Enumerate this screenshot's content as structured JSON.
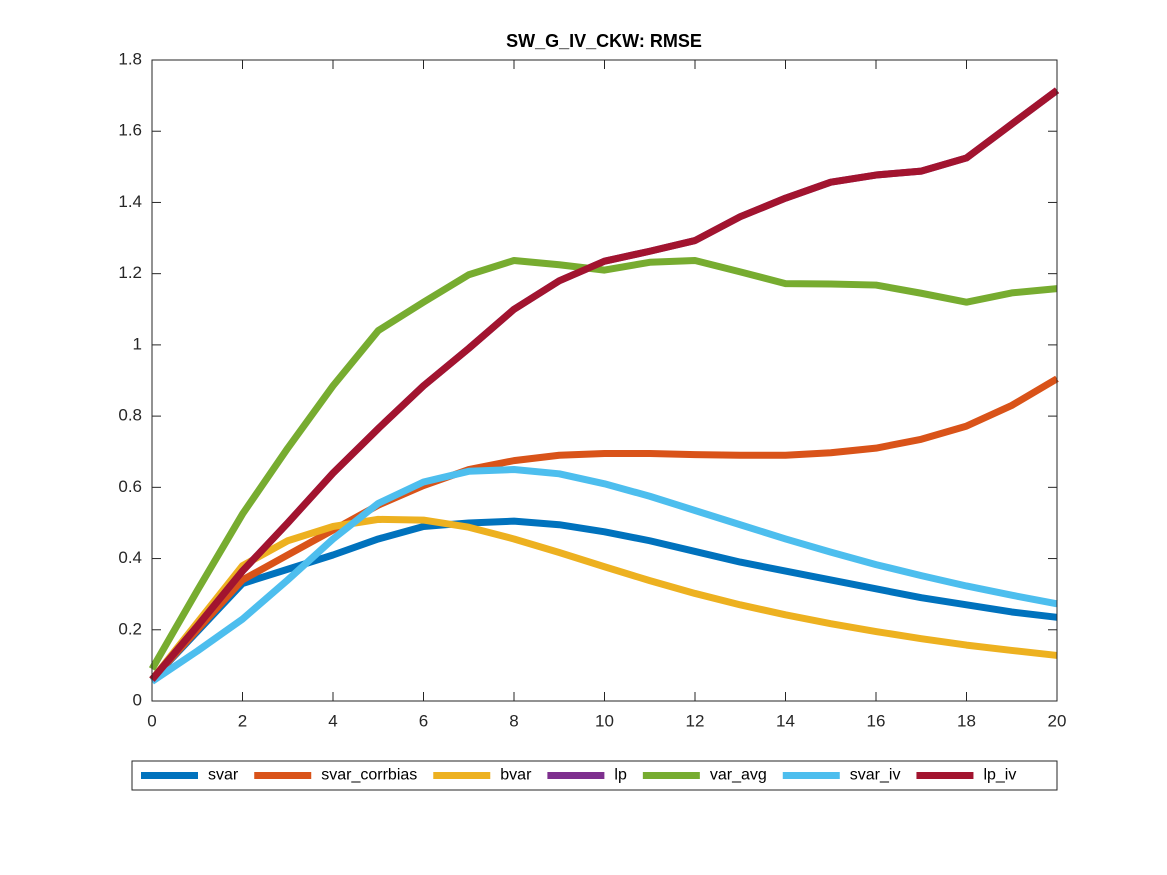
{
  "chart_data": {
    "type": "line",
    "title": "SW_G_IV_CKW: RMSE",
    "x": [
      0,
      1,
      2,
      3,
      4,
      5,
      6,
      7,
      8,
      9,
      10,
      11,
      12,
      13,
      14,
      15,
      16,
      17,
      18,
      19,
      20
    ],
    "series": [
      {
        "name": "svar",
        "color": "#0072bd",
        "values": [
          0.06,
          0.195,
          0.33,
          0.37,
          0.41,
          0.455,
          0.49,
          0.5,
          0.505,
          0.495,
          0.475,
          0.45,
          0.42,
          0.39,
          0.365,
          0.34,
          0.315,
          0.29,
          0.27,
          0.25,
          0.235
        ]
      },
      {
        "name": "svar_corrbias",
        "color": "#d95319",
        "values": [
          0.06,
          0.2,
          0.34,
          0.41,
          0.48,
          0.55,
          0.605,
          0.65,
          0.675,
          0.69,
          0.695,
          0.695,
          0.692,
          0.69,
          0.69,
          0.697,
          0.71,
          0.735,
          0.772,
          0.83,
          0.905
        ]
      },
      {
        "name": "bvar",
        "color": "#edb120",
        "values": [
          0.06,
          0.22,
          0.38,
          0.45,
          0.49,
          0.51,
          0.508,
          0.488,
          0.455,
          0.417,
          0.377,
          0.338,
          0.302,
          0.27,
          0.242,
          0.217,
          0.195,
          0.175,
          0.157,
          0.142,
          0.128
        ]
      },
      {
        "name": "lp",
        "color": "#7e2f8e",
        "values": [
          0.06,
          0.21,
          0.365,
          0.5,
          0.64,
          0.765,
          0.885,
          0.99,
          1.1,
          1.18,
          1.235,
          1.263,
          1.293,
          1.36,
          1.412,
          1.457,
          1.477,
          1.488,
          1.525,
          1.62,
          1.715
        ]
      },
      {
        "name": "var_avg",
        "color": "#77ac30",
        "values": [
          0.09,
          0.31,
          0.525,
          0.71,
          0.885,
          1.04,
          1.12,
          1.197,
          1.237,
          1.225,
          1.21,
          1.232,
          1.237,
          1.205,
          1.172,
          1.171,
          1.168,
          1.145,
          1.12,
          1.146,
          1.158
        ]
      },
      {
        "name": "svar_iv",
        "color": "#4dbeee",
        "values": [
          0.055,
          0.14,
          0.23,
          0.34,
          0.455,
          0.555,
          0.615,
          0.645,
          0.65,
          0.638,
          0.61,
          0.575,
          0.535,
          0.495,
          0.455,
          0.418,
          0.383,
          0.352,
          0.323,
          0.297,
          0.273
        ]
      },
      {
        "name": "lp_iv",
        "color": "#a2142f",
        "values": [
          0.06,
          0.21,
          0.365,
          0.5,
          0.64,
          0.765,
          0.885,
          0.99,
          1.1,
          1.18,
          1.235,
          1.263,
          1.293,
          1.36,
          1.412,
          1.457,
          1.477,
          1.488,
          1.525,
          1.62,
          1.715
        ]
      }
    ],
    "xlim": [
      0,
      20
    ],
    "xticks": [
      0,
      2,
      4,
      6,
      8,
      10,
      12,
      14,
      16,
      18,
      20
    ],
    "ylim": [
      0,
      1.8
    ],
    "yticks": [
      0,
      0.2,
      0.4,
      0.6,
      0.8,
      1,
      1.2,
      1.4,
      1.6,
      1.8
    ],
    "legend": "south-outside"
  }
}
